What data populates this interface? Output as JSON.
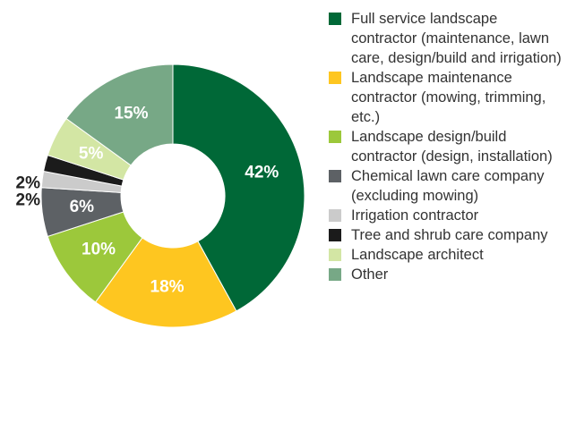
{
  "chart_data": {
    "type": "donut",
    "categories": [
      "Full service landscape contractor (maintenance, lawn care, design/build and irrigation)",
      "Landscape maintenance contractor (mowing, trimming, etc.)",
      "Landscape design/build contractor (design, installation)",
      "Chemical lawn care company (excluding mowing)",
      "Irrigation contractor",
      "Tree and shrub care company",
      "Landscape architect",
      "Other"
    ],
    "values": [
      42,
      18,
      10,
      6,
      2,
      2,
      5,
      15
    ],
    "value_labels": [
      "42%",
      "18%",
      "10%",
      "6%",
      "2%",
      "2%",
      "5%",
      "15%"
    ],
    "colors": [
      "#006837",
      "#fec620",
      "#9cc83b",
      "#5d6165",
      "#cbcbcb",
      "#1b1b1b",
      "#d3e6a4",
      "#77a886"
    ],
    "legend": "right"
  }
}
